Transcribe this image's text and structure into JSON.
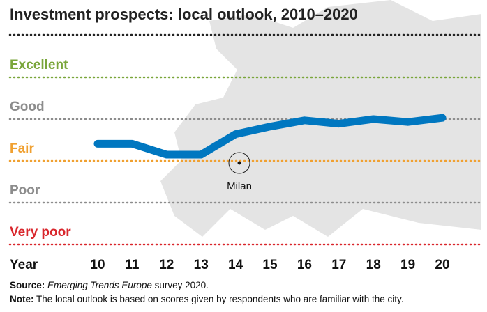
{
  "chart_data": {
    "type": "line",
    "title": "Investment prospects: local outlook, 2010–2020",
    "xlabel": "Year",
    "categories": [
      "10",
      "11",
      "12",
      "13",
      "14",
      "15",
      "16",
      "17",
      "18",
      "19",
      "20"
    ],
    "levels": [
      {
        "label": "Excellent",
        "value": 5,
        "color": "#7aa63b"
      },
      {
        "label": "Good",
        "value": 4,
        "color": "#8c8c8c"
      },
      {
        "label": "Fair",
        "value": 3,
        "color": "#f0a030"
      },
      {
        "label": "Poor",
        "value": 2,
        "color": "#8c8c8c"
      },
      {
        "label": "Very poor",
        "value": 1,
        "color": "#d9262c"
      }
    ],
    "series": [
      {
        "values": [
          3.41,
          3.41,
          3.15,
          3.15,
          3.64,
          3.82,
          3.97,
          3.89,
          4.0,
          3.93,
          4.03
        ],
        "color": "#0077c0"
      }
    ],
    "ylim": [
      1,
      5
    ],
    "annotation": "Milan"
  },
  "footer": {
    "source_label": "Source:",
    "source_italic": "Emerging Trends Europe",
    "source_rest": " survey 2020.",
    "note_label": "Note:",
    "note_text": " The local outlook is based on scores given by respondents who are familiar with the city."
  }
}
